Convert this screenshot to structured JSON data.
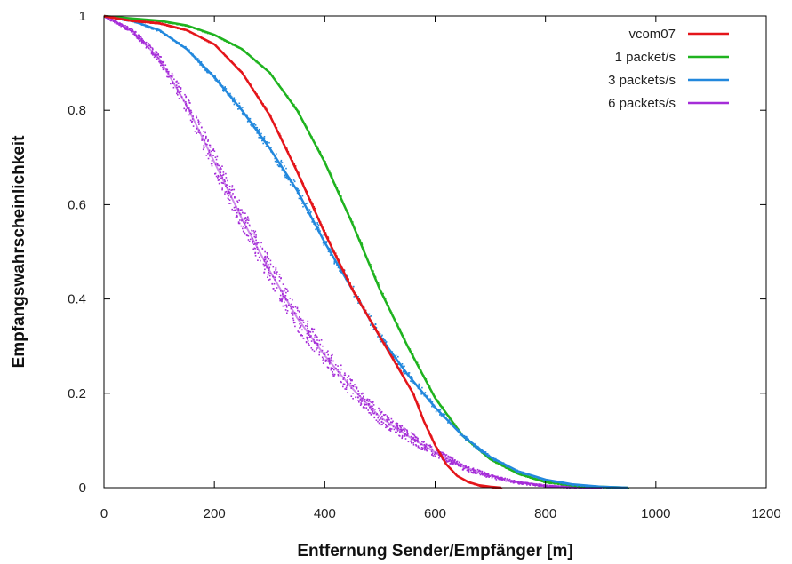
{
  "chart_data": {
    "type": "line",
    "xlabel": "Entfernung Sender/Empfänger [m]",
    "ylabel": "Empfangswahrscheinlichkeit",
    "xlim": [
      0,
      1200
    ],
    "ylim": [
      0,
      1
    ],
    "xticks": [
      "0",
      "200",
      "400",
      "600",
      "800",
      "1000",
      "1200"
    ],
    "yticks": [
      "0",
      "0.2",
      "0.4",
      "0.6",
      "0.8",
      "1"
    ],
    "grid": false,
    "legend_position": "top-right",
    "series": [
      {
        "name": "vcom07",
        "color": "#e4151a",
        "style": "line",
        "x": [
          0,
          50,
          100,
          150,
          200,
          250,
          300,
          350,
          400,
          450,
          500,
          550,
          560,
          580,
          600,
          620,
          640,
          660,
          680,
          700,
          720
        ],
        "y": [
          1.0,
          0.99,
          0.985,
          0.97,
          0.94,
          0.88,
          0.79,
          0.67,
          0.54,
          0.42,
          0.32,
          0.22,
          0.2,
          0.14,
          0.09,
          0.05,
          0.025,
          0.012,
          0.005,
          0.002,
          0.0
        ]
      },
      {
        "name": "1 packet/s",
        "color": "#1fb31f",
        "style": "line",
        "x": [
          0,
          50,
          100,
          150,
          200,
          250,
          300,
          350,
          400,
          450,
          500,
          550,
          600,
          650,
          700,
          750,
          800,
          850,
          900,
          950
        ],
        "y": [
          1.0,
          0.995,
          0.99,
          0.98,
          0.96,
          0.93,
          0.88,
          0.8,
          0.69,
          0.56,
          0.42,
          0.3,
          0.19,
          0.11,
          0.06,
          0.03,
          0.012,
          0.005,
          0.002,
          0.0
        ]
      },
      {
        "name": "3 packets/s",
        "color": "#2288dd",
        "style": "line",
        "x": [
          0,
          50,
          100,
          150,
          200,
          250,
          300,
          350,
          400,
          450,
          500,
          550,
          600,
          650,
          700,
          750,
          800,
          850,
          900,
          950
        ],
        "y": [
          1.0,
          0.99,
          0.97,
          0.93,
          0.87,
          0.8,
          0.72,
          0.63,
          0.52,
          0.42,
          0.32,
          0.24,
          0.17,
          0.11,
          0.065,
          0.035,
          0.017,
          0.007,
          0.002,
          0.0
        ]
      },
      {
        "name": "6 packets/s",
        "color": "#a52cd8",
        "style": "scatter",
        "x": [
          0,
          50,
          100,
          150,
          200,
          250,
          300,
          350,
          400,
          450,
          500,
          550,
          600,
          650,
          700,
          750,
          800,
          850,
          900
        ],
        "y": [
          1.0,
          0.97,
          0.91,
          0.81,
          0.69,
          0.57,
          0.46,
          0.36,
          0.28,
          0.21,
          0.15,
          0.11,
          0.075,
          0.045,
          0.025,
          0.012,
          0.005,
          0.002,
          0.0
        ]
      }
    ]
  }
}
